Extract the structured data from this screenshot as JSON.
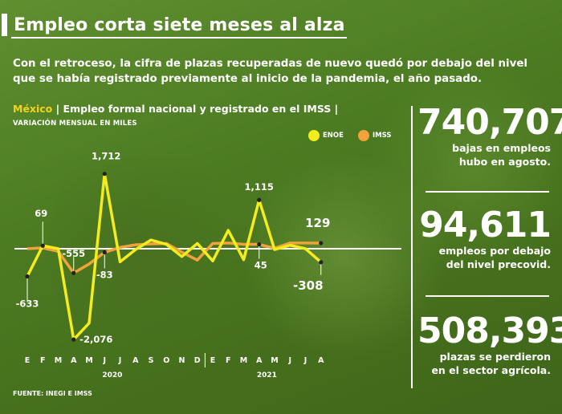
{
  "title": "Empleo corta siete meses al alza",
  "lead": "Con el retroceso, la cifra de plazas recuperadas de nuevo quedó por debajo del nivel que se había registrado previamente al inicio de la pandemia, el año pasado.",
  "subhead": {
    "country": "México",
    "description": " | Empleo formal nacional y registrado en el IMSS |"
  },
  "units": "VARIACIÓN MENSUAL EN MILES",
  "source": "FUENTE: INEGI E IMSS",
  "colors": {
    "enoe": "#f4ec1c",
    "imss": "#f2a23a",
    "background": "#4c7b22"
  },
  "chart_data": {
    "type": "line",
    "categories": [
      "E",
      "F",
      "M",
      "A",
      "M",
      "J",
      "J",
      "A",
      "S",
      "O",
      "N",
      "D",
      "E",
      "F",
      "M",
      "A",
      "M",
      "J",
      "J",
      "A"
    ],
    "year_labels": [
      "2020",
      "2021"
    ],
    "series": [
      {
        "name": "ENOE",
        "values": [
          -633,
          69,
          0,
          -2076,
          -1700,
          1712,
          -300,
          -20,
          200,
          100,
          -180,
          120,
          -280,
          420,
          -250,
          1115,
          -20,
          80,
          0,
          -308
        ]
      },
      {
        "name": "IMSS",
        "values": [
          0,
          20,
          -60,
          -555,
          -350,
          -83,
          30,
          90,
          110,
          120,
          -80,
          -260,
          120,
          130,
          100,
          100,
          10,
          130,
          130,
          129
        ]
      }
    ],
    "data_labels": [
      {
        "text": "-633"
      },
      {
        "text": "69"
      },
      {
        "text": "-555"
      },
      {
        "text": "-2,076"
      },
      {
        "text": "1,712"
      },
      {
        "text": "-83"
      },
      {
        "text": "1,115"
      },
      {
        "text": "45"
      },
      {
        "text": "129"
      },
      {
        "text": "-308"
      }
    ],
    "ylim": [
      -2200,
      2000
    ],
    "zero_line": true,
    "legend_position": "top-right"
  },
  "stats": [
    {
      "value": "740,707",
      "text_1": "bajas en empleos",
      "text_2": "hubo en agosto."
    },
    {
      "value": "94,611",
      "text_1": "empleos por debajo",
      "text_2": "del nivel precovid."
    },
    {
      "value": "508,393",
      "text_1": "plazas se perdieron",
      "text_2": "en el sector agrícola."
    }
  ]
}
